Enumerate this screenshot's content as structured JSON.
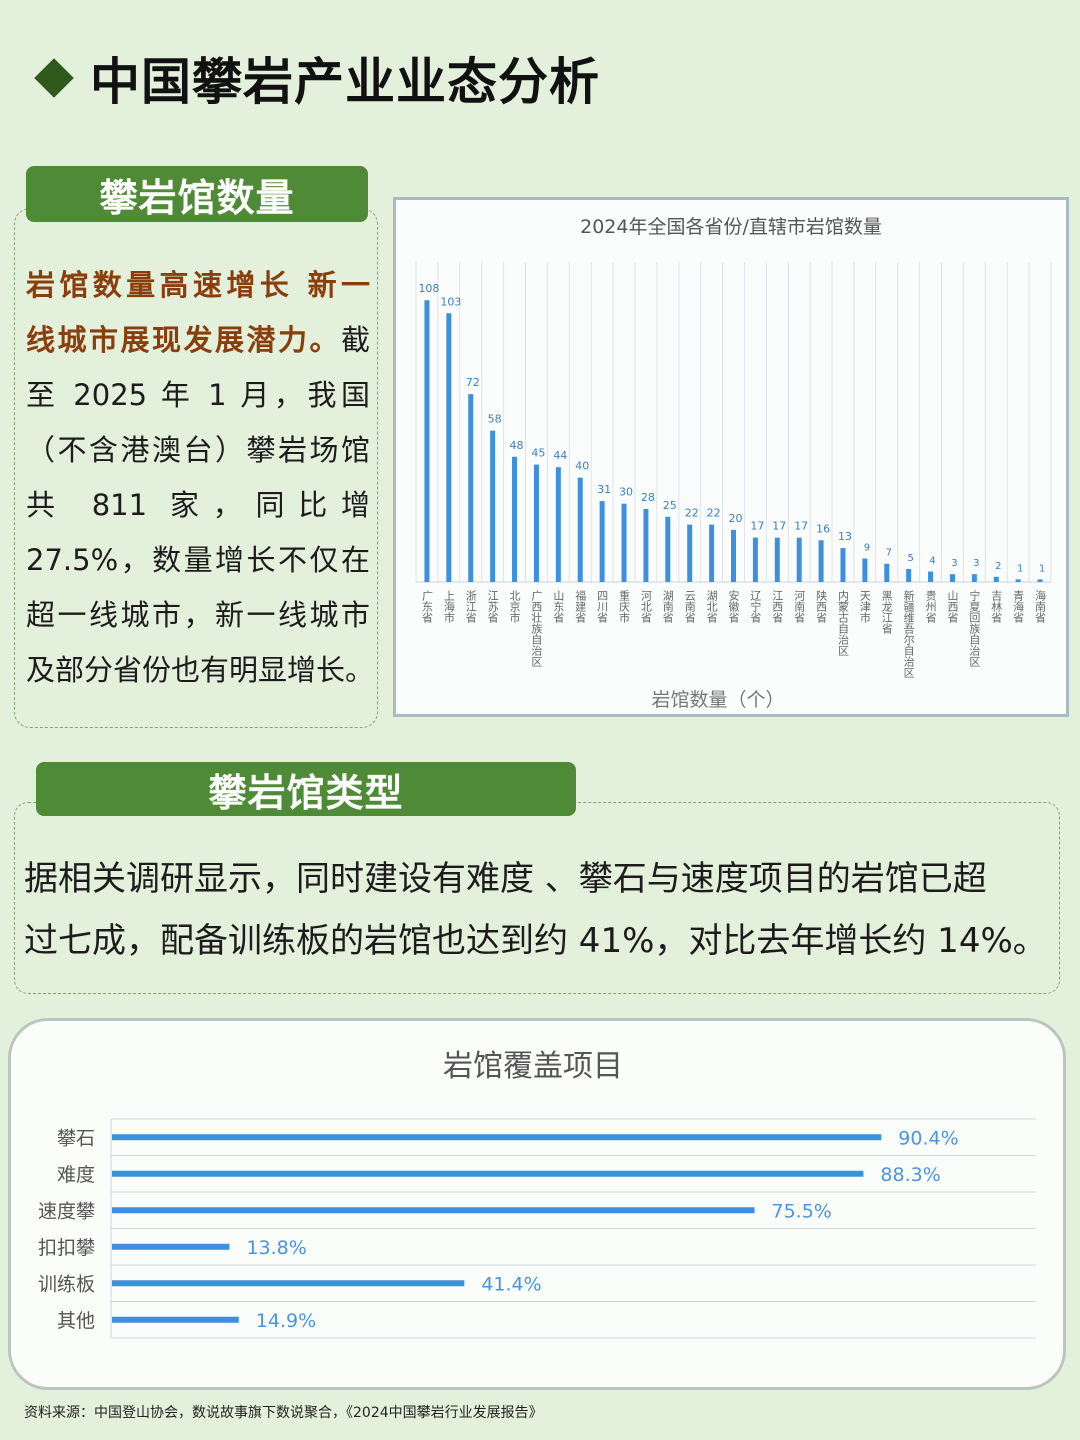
{
  "title": "中国攀岩产业业态分析",
  "section1": {
    "tab": "攀岩馆数量",
    "highlight_lines": [
      "岩馆数量高速增长 新一",
      "线城市展现发展潜力。"
    ],
    "tail_after_highlight": "截",
    "lines": [
      "至 2025 年 1 月，我国",
      "（不含港澳台）攀岩场馆",
      "共 811 家，同比增",
      "27.5%，数量增长不仅在",
      "超一线城市，新一线城市",
      "及部分省份也有明显增长。"
    ]
  },
  "section2": {
    "tab": "攀岩馆类型",
    "lines": [
      "据相关调研显示，同时建设有难度 、攀石与速度项目的岩馆已超",
      "过七成，配备训练板的岩馆也达到约 41%，对比去年增长约 14%。"
    ]
  },
  "source": "资料来源：中国登山协会，数说故事旗下数说聚合，《2024中国攀岩行业发展报告》",
  "colors": {
    "bar": "#3d8fe0",
    "label": "#4a95e0",
    "tab": "#4f8a36",
    "highlight": "#8a3e0c"
  },
  "chart_data": [
    {
      "type": "bar",
      "title": "2024年全国各省份/直辖市岩馆数量",
      "xlabel": "岩馆数量（个）",
      "ylabel": "",
      "grid": true,
      "categories": [
        "广东省",
        "上海市",
        "浙江省",
        "江苏省",
        "北京市",
        "广西壮族自治区",
        "山东省",
        "福建省",
        "四川省",
        "重庆市",
        "河北省",
        "湖南省",
        "云南省",
        "湖北省",
        "安徽省",
        "辽宁省",
        "江西省",
        "河南省",
        "陕西省",
        "内蒙古自治区",
        "天津市",
        "黑龙江省",
        "新疆维吾尔自治区",
        "贵州省",
        "山西省",
        "宁夏回族自治区",
        "吉林省",
        "青海省",
        "海南省"
      ],
      "values": [
        108,
        103,
        72,
        58,
        48,
        45,
        44,
        40,
        31,
        30,
        28,
        25,
        22,
        22,
        20,
        17,
        17,
        17,
        16,
        13,
        9,
        7,
        5,
        4,
        3,
        3,
        2,
        1,
        1
      ],
      "ylim": [
        0,
        110
      ]
    },
    {
      "type": "bar",
      "orientation": "horizontal",
      "title": "岩馆覆盖项目",
      "xlabel": "",
      "ylabel": "",
      "grid": true,
      "categories": [
        "攀石",
        "难度",
        "速度攀",
        "扣扣攀",
        "训练板",
        "其他"
      ],
      "values": [
        90.4,
        88.3,
        75.5,
        13.8,
        41.4,
        14.9
      ],
      "labels": [
        "90.4%",
        "88.3%",
        "75.5%",
        "13.8%",
        "41.4%",
        "14.9%"
      ],
      "xlim": [
        0,
        100
      ]
    }
  ]
}
